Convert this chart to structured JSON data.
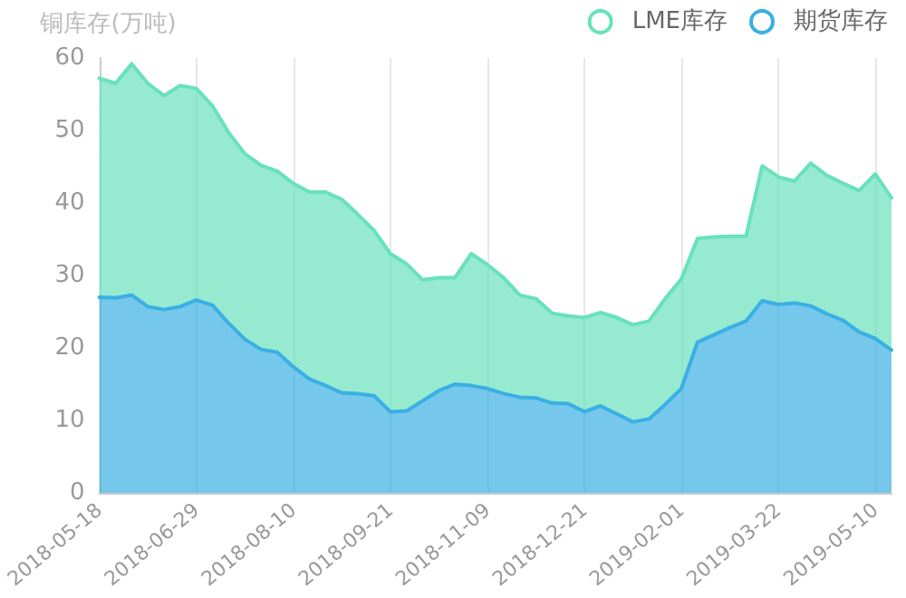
{
  "chart_data": {
    "type": "area",
    "ylabel": "铜库存(万吨)",
    "stacked": true,
    "grid": "x",
    "legend": "top right",
    "marker": "none",
    "line_style": "solid",
    "categories": [
      "2018-05-18",
      null,
      null,
      null,
      null,
      null,
      "2018-06-29",
      null,
      null,
      null,
      null,
      null,
      "2018-08-10",
      null,
      null,
      null,
      null,
      null,
      "2018-09-21",
      null,
      null,
      null,
      null,
      null,
      "2018-11-09",
      null,
      null,
      null,
      null,
      null,
      "2018-12-21",
      null,
      null,
      null,
      null,
      null,
      "2019-02-01",
      null,
      null,
      null,
      null,
      null,
      "2019-03-22",
      null,
      null,
      null,
      null,
      null,
      "2019-05-10",
      null
    ],
    "ylim": [
      0,
      60
    ],
    "yticks": [
      0,
      10,
      20,
      30,
      40,
      50,
      60
    ],
    "series": [
      {
        "name": "期货库存",
        "color": "#3aafe3",
        "values": [
          27,
          26.9,
          27.3,
          25.7,
          25.3,
          25.7,
          26.6,
          25.9,
          23.4,
          21.2,
          19.8,
          19.4,
          17.4,
          15.7,
          14.8,
          13.8,
          13.7,
          13.4,
          11.2,
          11.3,
          12.7,
          14.1,
          15,
          14.8,
          14.4,
          13.7,
          13.2,
          13.1,
          12.4,
          12.3,
          11.2,
          12,
          10.9,
          9.8,
          10.2,
          12.2,
          14.4,
          20.8,
          21.8,
          22.8,
          23.7,
          26.5,
          26,
          26.2,
          25.8,
          24.7,
          23.8,
          22.2,
          21.3,
          19.7
        ]
      },
      {
        "name": "LME库存",
        "color": "#68e1bc",
        "values": [
          30.2,
          29.6,
          31.9,
          30.8,
          29.5,
          30.5,
          29.2,
          27.5,
          26.3,
          25.6,
          25.4,
          25,
          25.3,
          25.8,
          26.7,
          26.7,
          24.7,
          22.8,
          21.8,
          20.3,
          16.7,
          15.6,
          14.7,
          18.2,
          17.1,
          16,
          14.1,
          13.7,
          12.4,
          12.1,
          13,
          12.9,
          13.3,
          13.4,
          13.5,
          14.6,
          15.1,
          14.3,
          13.5,
          12.6,
          11.7,
          18.6,
          17.6,
          16.8,
          19.7,
          19.1,
          18.9,
          19.5,
          22.7,
          21
        ]
      }
    ]
  }
}
